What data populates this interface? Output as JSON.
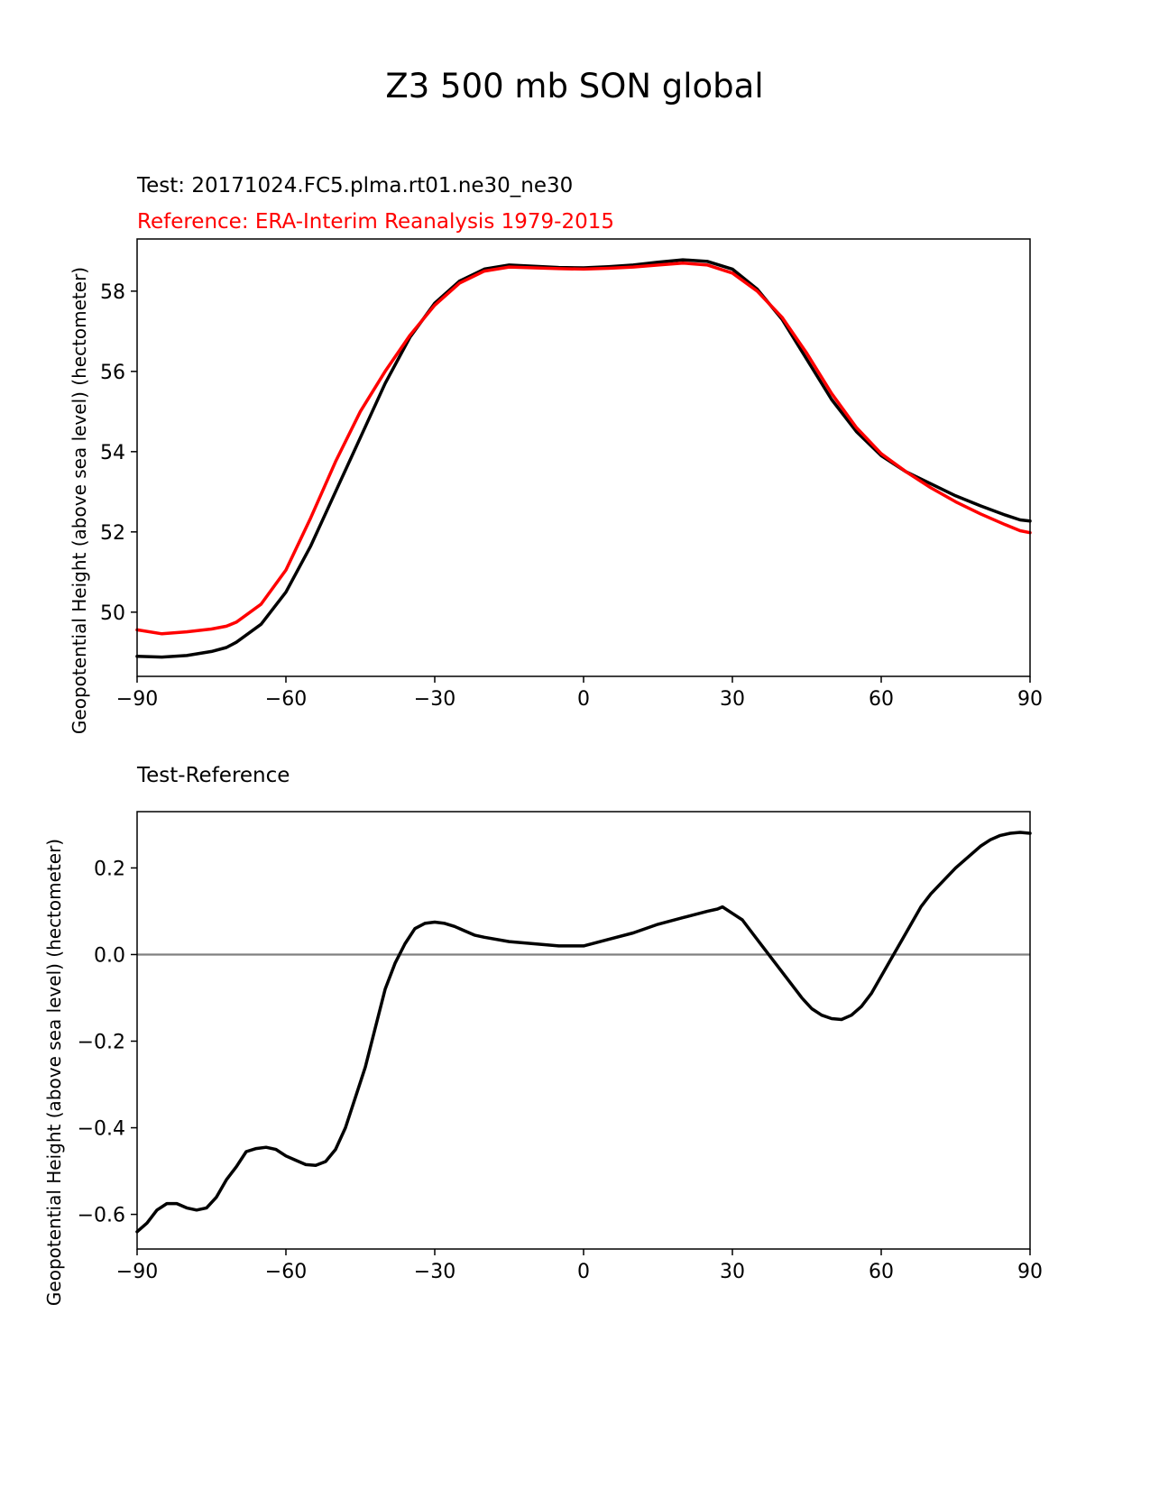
{
  "figure_title": "Z3 500 mb SON global",
  "colors": {
    "test": "#000000",
    "reference": "#ff0000",
    "zero_line": "#808080",
    "axes": "#000000"
  },
  "chart_data": [
    {
      "type": "line",
      "title_test": "Test: 20171024.FC5.plma.rt01.ne30_ne30",
      "title_reference": "Reference: ERA-Interim Reanalysis 1979-2015",
      "xlabel": "",
      "ylabel": "Geopotential Height (above sea level) (hectometer)",
      "xlim": [
        -90,
        90
      ],
      "ylim": [
        48.4,
        59.3
      ],
      "xticks": [
        -90,
        -60,
        -30,
        0,
        30,
        60,
        90
      ],
      "xtick_labels": [
        "−90",
        "−60",
        "−30",
        "0",
        "30",
        "60",
        "90"
      ],
      "yticks": [
        50,
        52,
        54,
        56,
        58
      ],
      "ytick_labels": [
        "50",
        "52",
        "54",
        "56",
        "58"
      ],
      "series": [
        {
          "name": "Test",
          "color": "#000000",
          "x": [
            -90,
            -85,
            -80,
            -75,
            -72,
            -70,
            -65,
            -60,
            -55,
            -50,
            -45,
            -40,
            -35,
            -30,
            -25,
            -20,
            -15,
            -10,
            -5,
            0,
            5,
            10,
            15,
            20,
            25,
            30,
            35,
            40,
            45,
            50,
            55,
            60,
            65,
            70,
            75,
            80,
            85,
            88,
            90
          ],
          "values": [
            48.9,
            48.88,
            48.92,
            49.02,
            49.12,
            49.25,
            49.7,
            50.5,
            51.65,
            53.0,
            54.35,
            55.7,
            56.85,
            57.7,
            58.25,
            58.55,
            58.65,
            58.62,
            58.59,
            58.58,
            58.61,
            58.65,
            58.72,
            58.78,
            58.74,
            58.55,
            58.05,
            57.3,
            56.3,
            55.3,
            54.5,
            53.9,
            53.5,
            53.2,
            52.9,
            52.65,
            52.42,
            52.3,
            52.27
          ]
        },
        {
          "name": "Reference",
          "color": "#ff0000",
          "x": [
            -90,
            -85,
            -80,
            -75,
            -72,
            -70,
            -65,
            -60,
            -55,
            -50,
            -45,
            -40,
            -35,
            -30,
            -25,
            -20,
            -15,
            -10,
            -5,
            0,
            5,
            10,
            15,
            20,
            25,
            30,
            35,
            40,
            45,
            50,
            55,
            60,
            65,
            70,
            75,
            80,
            85,
            88,
            90
          ],
          "values": [
            49.56,
            49.46,
            49.51,
            49.58,
            49.65,
            49.75,
            50.2,
            51.05,
            52.35,
            53.75,
            55.0,
            56.0,
            56.9,
            57.65,
            58.2,
            58.5,
            58.6,
            58.58,
            58.56,
            58.55,
            58.57,
            58.6,
            58.65,
            58.7,
            58.65,
            58.45,
            58.0,
            57.35,
            56.45,
            55.45,
            54.6,
            53.95,
            53.5,
            53.1,
            52.75,
            52.45,
            52.18,
            52.03,
            51.98
          ]
        }
      ]
    },
    {
      "type": "line",
      "title": "Test-Reference",
      "xlabel": "",
      "ylabel": "Geopotential Height (above sea level) (hectometer)",
      "xlim": [
        -90,
        90
      ],
      "ylim": [
        -0.68,
        0.33
      ],
      "xticks": [
        -90,
        -60,
        -30,
        0,
        30,
        60,
        90
      ],
      "xtick_labels": [
        "−90",
        "−60",
        "−30",
        "0",
        "30",
        "60",
        "90"
      ],
      "yticks": [
        -0.6,
        -0.4,
        -0.2,
        0.0,
        0.2
      ],
      "ytick_labels": [
        "−0.6",
        "−0.4",
        "−0.2",
        "0.0",
        "0.2"
      ],
      "zero_line": 0.0,
      "series": [
        {
          "name": "Test-Reference",
          "color": "#000000",
          "x": [
            -90,
            -88,
            -86,
            -84,
            -82,
            -80,
            -78,
            -76,
            -74,
            -72,
            -70,
            -68,
            -66,
            -64,
            -62,
            -60,
            -58,
            -56,
            -54,
            -52,
            -50,
            -48,
            -46,
            -44,
            -42,
            -40,
            -38,
            -36,
            -34,
            -32,
            -30,
            -28,
            -26,
            -24,
            -22,
            -20,
            -15,
            -10,
            -5,
            0,
            5,
            10,
            15,
            20,
            25,
            27,
            28,
            30,
            32,
            34,
            36,
            38,
            40,
            42,
            44,
            46,
            48,
            50,
            52,
            54,
            56,
            58,
            60,
            62,
            64,
            66,
            68,
            70,
            75,
            80,
            82,
            84,
            86,
            88,
            90
          ],
          "values": [
            -0.64,
            -0.62,
            -0.59,
            -0.575,
            -0.575,
            -0.585,
            -0.59,
            -0.585,
            -0.56,
            -0.52,
            -0.49,
            -0.455,
            -0.448,
            -0.445,
            -0.45,
            -0.465,
            -0.475,
            -0.485,
            -0.487,
            -0.478,
            -0.45,
            -0.4,
            -0.33,
            -0.26,
            -0.17,
            -0.08,
            -0.02,
            0.025,
            0.06,
            0.072,
            0.075,
            0.072,
            0.065,
            0.055,
            0.045,
            0.04,
            0.03,
            0.025,
            0.02,
            0.02,
            0.035,
            0.05,
            0.07,
            0.085,
            0.1,
            0.105,
            0.11,
            0.095,
            0.08,
            0.05,
            0.02,
            -0.01,
            -0.04,
            -0.07,
            -0.1,
            -0.125,
            -0.14,
            -0.148,
            -0.15,
            -0.14,
            -0.12,
            -0.09,
            -0.05,
            -0.01,
            0.03,
            0.07,
            0.11,
            0.14,
            0.2,
            0.25,
            0.265,
            0.275,
            0.28,
            0.282,
            0.28
          ]
        }
      ]
    }
  ]
}
